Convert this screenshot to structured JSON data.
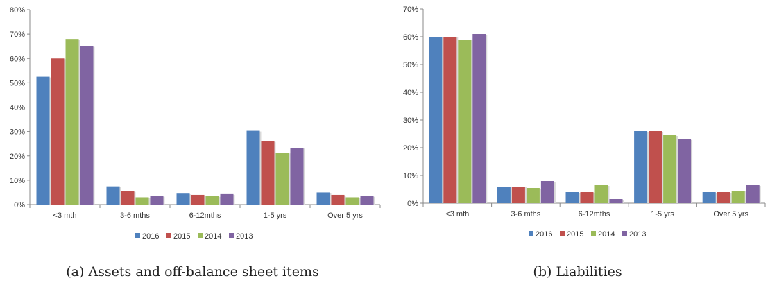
{
  "chart_data": [
    {
      "type": "bar",
      "caption": "(a) Assets and off-balance sheet items",
      "categories": [
        "<3 mth",
        "3-6 mths",
        "6-12mths",
        "1-5 yrs",
        "Over 5 yrs"
      ],
      "series": [
        {
          "name": "2016",
          "color": "#4F81BD",
          "values": [
            52.5,
            7.5,
            4.5,
            30.3,
            5.0
          ]
        },
        {
          "name": "2015",
          "color": "#C0504D",
          "values": [
            60.0,
            5.5,
            4.0,
            26.0,
            4.0
          ]
        },
        {
          "name": "2014",
          "color": "#9BBB59",
          "values": [
            68.0,
            3.0,
            3.5,
            21.3,
            3.0
          ]
        },
        {
          "name": "2013",
          "color": "#8064A2",
          "values": [
            65.0,
            3.5,
            4.3,
            23.3,
            3.5
          ]
        }
      ],
      "ylim": [
        0,
        80
      ],
      "yticks": [
        "0%",
        "10%",
        "20%",
        "30%",
        "40%",
        "50%",
        "60%",
        "70%",
        "80%"
      ],
      "grid": false,
      "legend_position": "bottom"
    },
    {
      "type": "bar",
      "caption": "(b) Liabilities",
      "categories": [
        "<3 mth",
        "3-6 mths",
        "6-12mths",
        "1-5 yrs",
        "Over 5 yrs"
      ],
      "series": [
        {
          "name": "2016",
          "color": "#4F81BD",
          "values": [
            60.0,
            6.0,
            4.0,
            26.0,
            4.0
          ]
        },
        {
          "name": "2015",
          "color": "#C0504D",
          "values": [
            60.0,
            6.0,
            4.0,
            26.0,
            4.0
          ]
        },
        {
          "name": "2014",
          "color": "#9BBB59",
          "values": [
            59.0,
            5.5,
            6.5,
            24.5,
            4.5
          ]
        },
        {
          "name": "2013",
          "color": "#8064A2",
          "values": [
            61.0,
            8.0,
            1.5,
            23.0,
            6.5
          ]
        }
      ],
      "ylim": [
        0,
        70
      ],
      "yticks": [
        "0%",
        "10%",
        "20%",
        "30%",
        "40%",
        "50%",
        "60%",
        "70%"
      ],
      "grid": false,
      "legend_position": "bottom"
    }
  ]
}
